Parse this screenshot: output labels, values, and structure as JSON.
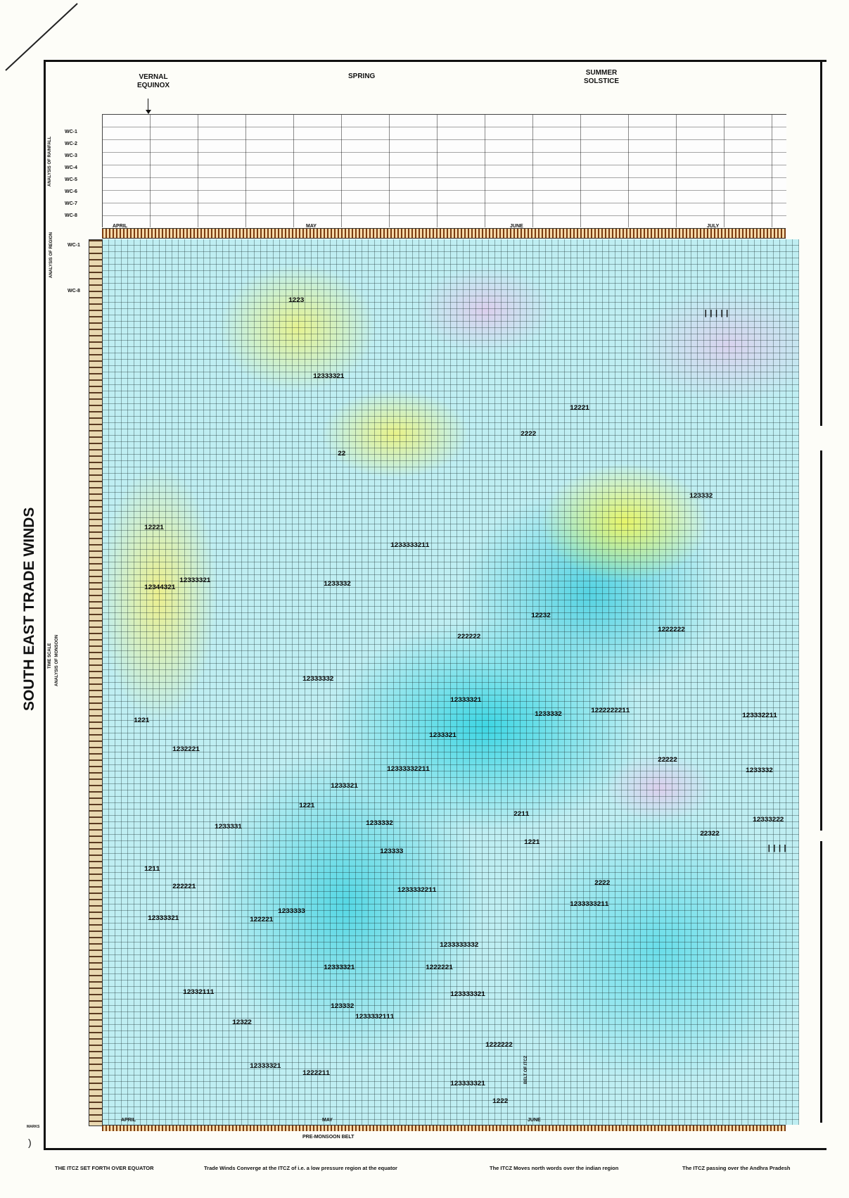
{
  "header": {
    "vernal_equinox": "VERNAL EQUINOX",
    "spring": "SPRING",
    "summer_solstice": "SUMMER SOLSTICE"
  },
  "side": {
    "title": "SOUTH EAST TRADE WINDS",
    "subtitle_1": "TIME SCALE",
    "subtitle_2": "ANALYSIS OF MONSOON",
    "upper_axis_label": "ANALYSIS OF RAINFALL",
    "lower_axis_label": "ANALYSIS OF REGION"
  },
  "wc_rows": [
    "WC-1",
    "WC-2",
    "WC-3",
    "WC-4",
    "WC-5",
    "WC-6",
    "WC-7",
    "WC-8"
  ],
  "months_top": [
    "APRIL",
    "MAY",
    "JUNE",
    "JULY"
  ],
  "months_bottom": [
    "APRIL",
    "MAY",
    "JUNE"
  ],
  "bottom_band_label": "PRE-MONSOON BELT",
  "vertical_mid_label": "BELT OF ITCZ",
  "footer": {
    "note_1": "THE ITCZ SET FORTH OVER EQUATOR",
    "note_2": "Trade Winds Converge at the ITCZ of i.e. a low pressure region at the equator",
    "note_3": "The ITCZ Moves north words over the indian region",
    "note_4": "The ITCZ passing over the Andhra Pradesh"
  },
  "corner_mark": "MARKS",
  "data_runs": [
    "1223",
    "12333321",
    "12344321",
    "12332111",
    "12333332",
    "1233333211",
    "12333321",
    "2222",
    "22",
    "1221",
    "12333332211",
    "123332211",
    "1233332",
    "1222222",
    "12333222",
    "1232221",
    "1221",
    "1233333211",
    "122221",
    "1233333332",
    "1233332111",
    "12322",
    "1221",
    "1222222",
    "12333321",
    "123333",
    "1233332",
    "12333321",
    "1222",
    "12221",
    "123333321",
    "222221",
    "2222",
    "22222",
    "123332",
    "123333321",
    "1222211",
    "12221",
    "2211",
    "1211",
    "1222221",
    "1233321",
    "1233332211",
    "12232",
    "22322",
    "12333321",
    "1233333",
    "12333321",
    "1233332",
    "1233331",
    "123332",
    "1233321",
    "1222222211",
    "1233332",
    "222222"
  ]
}
